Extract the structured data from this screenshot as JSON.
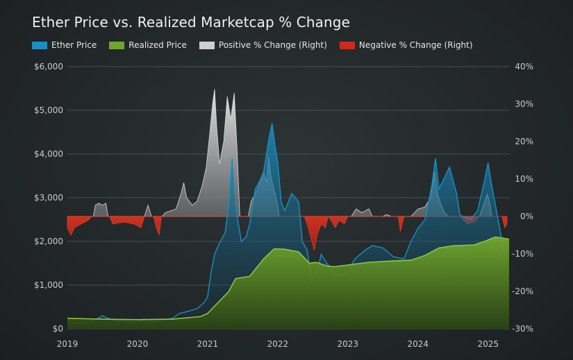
{
  "chart_data": {
    "type": "area",
    "title": "Ether Price vs. Realized Marketcap % Change",
    "xlabel": "",
    "ylabel_left": "",
    "ylabel_right": "",
    "xlim": [
      2019.0,
      2025.3
    ],
    "ylim_left": [
      0,
      6000
    ],
    "ylim_right": [
      -30,
      40
    ],
    "x_ticks": [
      2019,
      2020,
      2021,
      2022,
      2023,
      2024,
      2025
    ],
    "x_tick_labels": [
      "2019",
      "2020",
      "2021",
      "2022",
      "2023",
      "2024",
      "2025"
    ],
    "y_left_ticks": [
      0,
      1000,
      2000,
      3000,
      4000,
      5000,
      6000
    ],
    "y_left_tick_labels": [
      "$0",
      "$1,000",
      "$2,000",
      "$3,000",
      "$4,000",
      "$5,000",
      "$6,000"
    ],
    "y_right_ticks": [
      -30,
      -20,
      -10,
      0,
      10,
      20,
      30,
      40
    ],
    "y_right_tick_labels": [
      "-30%",
      "-20%",
      "-10%",
      "0%",
      "10%",
      "20%",
      "30%",
      "40%"
    ],
    "grid": true,
    "legend_position": "top-left",
    "colors": {
      "ether": "#1a8fc0",
      "realized": "#6fa52c",
      "positive": "#cfcfcf",
      "negative": "#cc2a1e"
    },
    "series": [
      {
        "name": "Ether Price",
        "axis": "left",
        "points": [
          [
            2019.0,
            140
          ],
          [
            2019.1,
            115
          ],
          [
            2019.2,
            135
          ],
          [
            2019.35,
            170
          ],
          [
            2019.45,
            250
          ],
          [
            2019.5,
            300
          ],
          [
            2019.55,
            260
          ],
          [
            2019.65,
            200
          ],
          [
            2019.8,
            180
          ],
          [
            2019.95,
            135
          ],
          [
            2020.1,
            220
          ],
          [
            2020.2,
            150
          ],
          [
            2020.3,
            180
          ],
          [
            2020.5,
            240
          ],
          [
            2020.6,
            350
          ],
          [
            2020.7,
            390
          ],
          [
            2020.85,
            460
          ],
          [
            2020.95,
            600
          ],
          [
            2021.0,
            730
          ],
          [
            2021.05,
            1300
          ],
          [
            2021.1,
            1700
          ],
          [
            2021.15,
            1900
          ],
          [
            2021.25,
            2200
          ],
          [
            2021.3,
            2800
          ],
          [
            2021.35,
            3900
          ],
          [
            2021.38,
            3200
          ],
          [
            2021.42,
            2600
          ],
          [
            2021.48,
            2000
          ],
          [
            2021.55,
            2100
          ],
          [
            2021.6,
            2400
          ],
          [
            2021.68,
            3200
          ],
          [
            2021.75,
            3400
          ],
          [
            2021.8,
            3600
          ],
          [
            2021.87,
            4300
          ],
          [
            2021.92,
            4700
          ],
          [
            2021.96,
            4200
          ],
          [
            2022.0,
            3800
          ],
          [
            2022.05,
            2900
          ],
          [
            2022.1,
            2700
          ],
          [
            2022.2,
            3100
          ],
          [
            2022.3,
            2900
          ],
          [
            2022.35,
            2000
          ],
          [
            2022.42,
            1800
          ],
          [
            2022.48,
            1100
          ],
          [
            2022.55,
            1200
          ],
          [
            2022.62,
            1700
          ],
          [
            2022.7,
            1500
          ],
          [
            2022.8,
            1300
          ],
          [
            2022.9,
            1200
          ],
          [
            2023.0,
            1300
          ],
          [
            2023.1,
            1600
          ],
          [
            2023.25,
            1800
          ],
          [
            2023.35,
            1900
          ],
          [
            2023.5,
            1850
          ],
          [
            2023.65,
            1650
          ],
          [
            2023.8,
            1600
          ],
          [
            2023.9,
            2000
          ],
          [
            2024.0,
            2300
          ],
          [
            2024.1,
            2500
          ],
          [
            2024.2,
            3300
          ],
          [
            2024.25,
            3900
          ],
          [
            2024.3,
            3200
          ],
          [
            2024.45,
            3700
          ],
          [
            2024.55,
            3100
          ],
          [
            2024.6,
            2600
          ],
          [
            2024.75,
            2500
          ],
          [
            2024.85,
            2700
          ],
          [
            2024.95,
            3400
          ],
          [
            2025.0,
            3800
          ],
          [
            2025.05,
            3300
          ],
          [
            2025.12,
            2700
          ],
          [
            2025.2,
            2000
          ],
          [
            2025.25,
            1600
          ]
        ]
      },
      {
        "name": "Realized Price",
        "axis": "left",
        "points": [
          [
            2019.0,
            240
          ],
          [
            2019.5,
            220
          ],
          [
            2020.0,
            210
          ],
          [
            2020.5,
            220
          ],
          [
            2020.9,
            280
          ],
          [
            2021.0,
            350
          ],
          [
            2021.15,
            600
          ],
          [
            2021.3,
            850
          ],
          [
            2021.4,
            1150
          ],
          [
            2021.6,
            1200
          ],
          [
            2021.8,
            1600
          ],
          [
            2021.95,
            1830
          ],
          [
            2022.1,
            1820
          ],
          [
            2022.3,
            1760
          ],
          [
            2022.45,
            1500
          ],
          [
            2022.55,
            1520
          ],
          [
            2022.7,
            1440
          ],
          [
            2022.8,
            1420
          ],
          [
            2023.0,
            1460
          ],
          [
            2023.3,
            1520
          ],
          [
            2023.6,
            1550
          ],
          [
            2023.9,
            1570
          ],
          [
            2024.1,
            1680
          ],
          [
            2024.3,
            1850
          ],
          [
            2024.5,
            1900
          ],
          [
            2024.8,
            1920
          ],
          [
            2024.95,
            2000
          ],
          [
            2025.1,
            2100
          ],
          [
            2025.2,
            2080
          ],
          [
            2025.3,
            2050
          ]
        ]
      },
      {
        "name": "Positive % Change (Right)",
        "axis": "right",
        "points": [
          [
            2019.0,
            0
          ],
          [
            2019.37,
            0
          ],
          [
            2019.4,
            3
          ],
          [
            2019.45,
            3.5
          ],
          [
            2019.5,
            3
          ],
          [
            2019.55,
            3.5
          ],
          [
            2019.58,
            0
          ],
          [
            2020.1,
            0
          ],
          [
            2020.15,
            3
          ],
          [
            2020.2,
            0
          ],
          [
            2020.35,
            0
          ],
          [
            2020.4,
            1
          ],
          [
            2020.55,
            2
          ],
          [
            2020.62,
            6
          ],
          [
            2020.66,
            9
          ],
          [
            2020.7,
            5
          ],
          [
            2020.78,
            3
          ],
          [
            2020.85,
            4
          ],
          [
            2020.92,
            8
          ],
          [
            2020.98,
            13
          ],
          [
            2021.03,
            22
          ],
          [
            2021.07,
            30
          ],
          [
            2021.1,
            34
          ],
          [
            2021.13,
            24
          ],
          [
            2021.17,
            14
          ],
          [
            2021.23,
            20
          ],
          [
            2021.28,
            32
          ],
          [
            2021.33,
            26
          ],
          [
            2021.38,
            33
          ],
          [
            2021.42,
            18
          ],
          [
            2021.46,
            0
          ],
          [
            2021.58,
            0
          ],
          [
            2021.62,
            4
          ],
          [
            2021.68,
            6
          ],
          [
            2021.75,
            9
          ],
          [
            2021.8,
            12
          ],
          [
            2021.84,
            9
          ],
          [
            2021.87,
            16
          ],
          [
            2021.9,
            11
          ],
          [
            2021.95,
            7
          ],
          [
            2022.0,
            3
          ],
          [
            2022.02,
            0
          ],
          [
            2023.05,
            0
          ],
          [
            2023.12,
            2
          ],
          [
            2023.2,
            1
          ],
          [
            2023.3,
            2
          ],
          [
            2023.35,
            0
          ],
          [
            2023.5,
            0
          ],
          [
            2023.55,
            0.5
          ],
          [
            2023.62,
            0
          ],
          [
            2023.9,
            0
          ],
          [
            2024.0,
            2
          ],
          [
            2024.1,
            2.5
          ],
          [
            2024.18,
            5
          ],
          [
            2024.24,
            12
          ],
          [
            2024.28,
            6
          ],
          [
            2024.33,
            3
          ],
          [
            2024.38,
            1
          ],
          [
            2024.43,
            0
          ],
          [
            2024.88,
            0
          ],
          [
            2024.95,
            4
          ],
          [
            2024.99,
            6
          ],
          [
            2025.03,
            3
          ],
          [
            2025.05,
            0
          ]
        ]
      },
      {
        "name": "Negative % Change (Right)",
        "axis": "right",
        "points": [
          [
            2019.0,
            -3
          ],
          [
            2019.05,
            -5
          ],
          [
            2019.1,
            -3
          ],
          [
            2019.2,
            -2
          ],
          [
            2019.3,
            -1
          ],
          [
            2019.35,
            0
          ],
          [
            2019.6,
            0
          ],
          [
            2019.65,
            -2
          ],
          [
            2019.8,
            -1.5
          ],
          [
            2019.95,
            -2
          ],
          [
            2020.05,
            -3
          ],
          [
            2020.1,
            0
          ],
          [
            2020.23,
            0
          ],
          [
            2020.27,
            -3
          ],
          [
            2020.31,
            -5
          ],
          [
            2020.34,
            0
          ],
          [
            2022.38,
            0
          ],
          [
            2022.42,
            -2
          ],
          [
            2022.48,
            -6
          ],
          [
            2022.52,
            -9
          ],
          [
            2022.56,
            -5
          ],
          [
            2022.62,
            -2
          ],
          [
            2022.68,
            -3
          ],
          [
            2022.72,
            0
          ],
          [
            2022.76,
            -1
          ],
          [
            2022.82,
            -3
          ],
          [
            2022.88,
            -1
          ],
          [
            2022.95,
            -2
          ],
          [
            2023.0,
            0
          ],
          [
            2023.72,
            0
          ],
          [
            2023.75,
            -4
          ],
          [
            2023.8,
            0
          ],
          [
            2024.6,
            0
          ],
          [
            2024.7,
            -2
          ],
          [
            2024.8,
            -1.5
          ],
          [
            2024.88,
            0
          ],
          [
            2025.2,
            0
          ],
          [
            2025.24,
            -3
          ],
          [
            2025.27,
            -2
          ]
        ]
      }
    ]
  }
}
